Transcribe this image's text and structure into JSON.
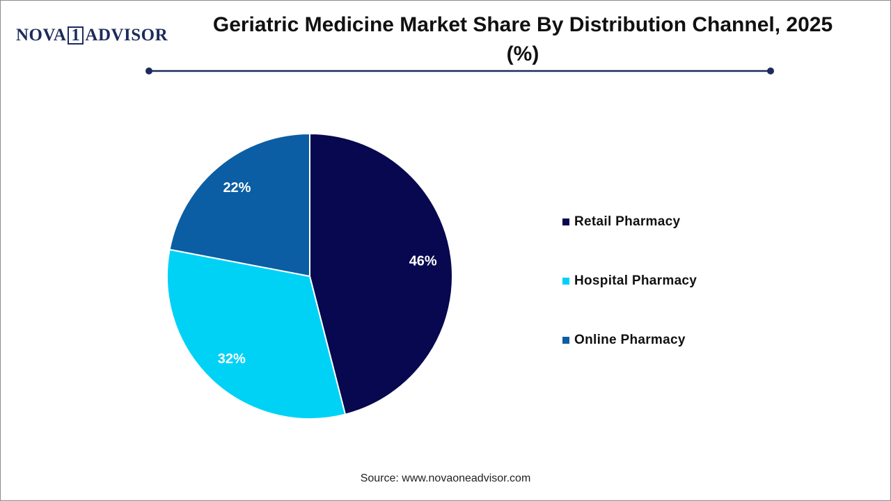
{
  "logo": {
    "left": "NOVA",
    "mark": "1",
    "right": "ADVISOR"
  },
  "chart_data": {
    "type": "pie",
    "title": "Geriatric Medicine Market Share By Distribution Channel, 2025 (%)",
    "categories": [
      "Retail Pharmacy",
      "Hospital Pharmacy",
      "Online Pharmacy"
    ],
    "values": [
      46,
      32,
      22
    ],
    "value_labels": [
      "46%",
      "32%",
      "22%"
    ],
    "colors": [
      "#07084f",
      "#00d2f6",
      "#0b5ea3"
    ],
    "legend": "right"
  },
  "source": "Source: www.novaoneadvisor.com"
}
